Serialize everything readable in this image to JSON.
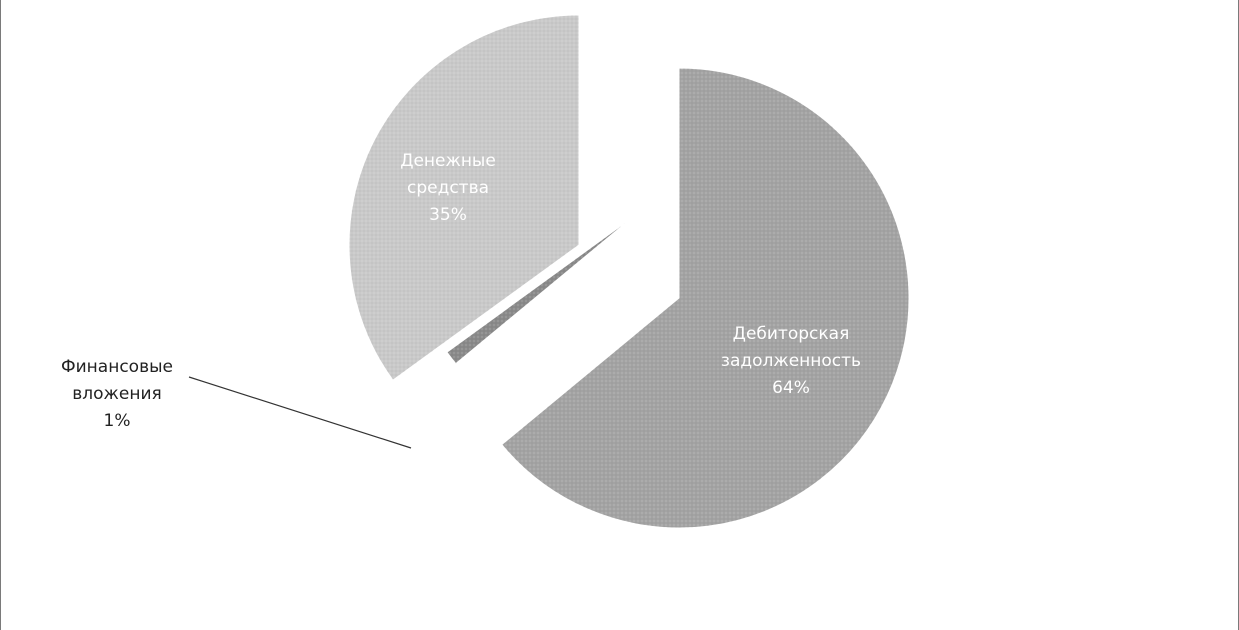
{
  "chart_data": {
    "type": "pie",
    "title": "",
    "slices": [
      {
        "label": "Дебиторская задолженность",
        "label_lines": [
          "Дебиторская",
          "задолженность"
        ],
        "value": 64,
        "value_label": "64%",
        "color": "#a3a3a3",
        "text_color": "#ffffff"
      },
      {
        "label": "Финансовые вложения",
        "label_lines": [
          "Финансовые",
          "вложения"
        ],
        "value": 1,
        "value_label": "1%",
        "color": "#8a8a8a",
        "text_color": "#222222"
      },
      {
        "label": "Денежные средства",
        "label_lines": [
          "Денежные",
          "средства"
        ],
        "value": 35,
        "value_label": "35%",
        "color": "#c9c9c9",
        "text_color": "#ffffff"
      }
    ],
    "legend": "none",
    "start_angle": "12 o'clock",
    "direction": "clockwise",
    "exploded": true
  }
}
